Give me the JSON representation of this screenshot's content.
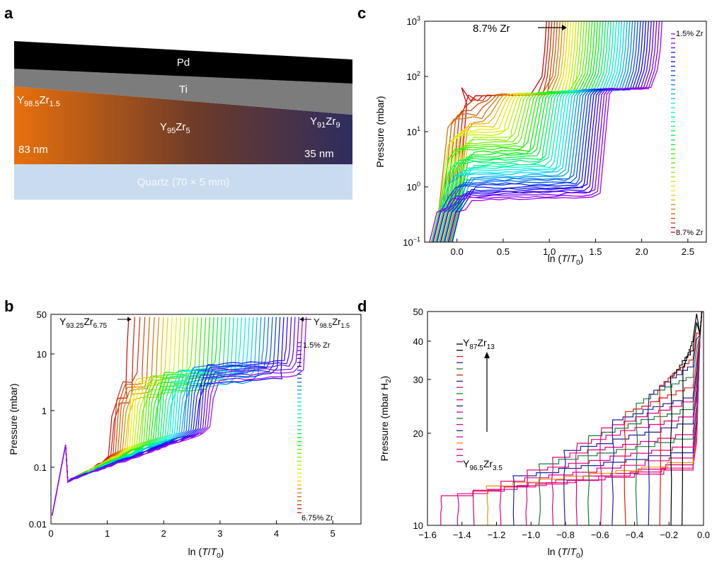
{
  "panel_letters": {
    "a": "a",
    "b": "b",
    "c": "c",
    "d": "d"
  },
  "panel_a": {
    "layers": {
      "pd": "Pd",
      "ti": "Ti",
      "quartz": "Quartz (70 × 5 mm)"
    },
    "gradient_colors": [
      "#e8700c",
      "#6b3a2a",
      "#2e2d5e"
    ],
    "left_label": {
      "main": "Y",
      "sub1": "98.5",
      "zr": "Zr",
      "sub2": "1.5"
    },
    "mid_label": {
      "main": "Y",
      "sub1": "95",
      "zr": "Zr",
      "sub2": "5"
    },
    "right_label": {
      "main": "Y",
      "sub1": "91",
      "zr": "Zr",
      "sub2": "9"
    },
    "left_thickness": "83 nm",
    "right_thickness": "35 nm"
  },
  "chart_data": [
    {
      "id": "b",
      "type": "line",
      "xlabel": "ln (T/T0)",
      "ylabel": "Pressure (mbar)",
      "xlim": [
        0,
        5.5
      ],
      "ylim": [
        0.01,
        50
      ],
      "log_y": true,
      "x_ticks": [
        "0",
        "1",
        "2",
        "3",
        "4",
        "5"
      ],
      "y_ticks": [
        "0.01",
        "0.1",
        "1",
        "10",
        "50"
      ],
      "series_count": 44,
      "composition_range": [
        "6.75% Zr",
        "1.5% Zr"
      ],
      "annotations": {
        "left": {
          "main": "Y",
          "sub1": "93.25",
          "zr": "Zr",
          "sub2": "6.75"
        },
        "right": {
          "main": "Y",
          "sub1": "98.5",
          "zr": "Zr",
          "sub2": "1.5"
        }
      },
      "legend_top": "1.5% Zr",
      "legend_bottom": "6.75% Zr",
      "curves": {
        "edge_x": [
          1.35,
          4.5
        ],
        "plateau_low_y": [
          0.12,
          0.4
        ],
        "plateau_high_y": [
          2.0,
          6.0
        ],
        "step_x": [
          0.9,
          2.7
        ]
      }
    },
    {
      "id": "c",
      "type": "line",
      "xlabel": "ln (T/T0)",
      "ylabel": "Pressure (mbar)",
      "xlim": [
        -0.35,
        2.7
      ],
      "ylim": [
        0.1,
        1000
      ],
      "log_y": true,
      "x_ticks": [
        "0.0",
        "0.5",
        "1.0",
        "1.5",
        "2.0",
        "2.5"
      ],
      "series_count": 44,
      "annotation": "8.7% Zr",
      "legend_top": "1.5% Zr",
      "legend_bottom": "8.7% Zr",
      "curves": {
        "edge_x": [
          0.95,
          2.2
        ],
        "plateau_low_y": [
          45,
          0.55
        ],
        "plateau_high_y": [
          45,
          60
        ],
        "step_x": [
          0.05,
          1.55
        ]
      }
    },
    {
      "id": "d",
      "type": "line",
      "xlabel": "ln (T/T0)",
      "ylabel": "Pressure (mbar H2)",
      "xlim": [
        -1.6,
        0.0
      ],
      "ylim": [
        10,
        50
      ],
      "log_y": true,
      "x_ticks": [
        "−1.6",
        "−1.4",
        "−1.2",
        "−1.0",
        "−0.8",
        "−0.6",
        "−0.4",
        "−0.2",
        "0.0"
      ],
      "y_ticks": [
        "10",
        "20",
        "30",
        "40",
        "50"
      ],
      "series_count": 20,
      "legend_top": {
        "main": "Y",
        "sub1": "87",
        "zr": "Zr",
        "sub2": "13"
      },
      "legend_bottom": {
        "main": "Y",
        "sub1": "96.5",
        "zr": "Zr",
        "sub2": "3.5"
      },
      "series_colors": [
        "#e6007e",
        "#e6007e",
        "#d4006a",
        "#ff8c00",
        "#e6007e",
        "#2020a0",
        "#e6007e",
        "#1a7a3a",
        "#e6007e",
        "#2020a0",
        "#e6007e",
        "#1a7a3a",
        "#e6007e",
        "#2020a0",
        "#e8170c",
        "#1a7a3a",
        "#2020a0",
        "#e8170c",
        "#000000",
        "#000000"
      ],
      "curves": {
        "start_x": [
          -1.52,
          -0.12
        ],
        "plateau_y": [
          12.5,
          33.0
        ],
        "edge_x": -0.06
      }
    }
  ]
}
